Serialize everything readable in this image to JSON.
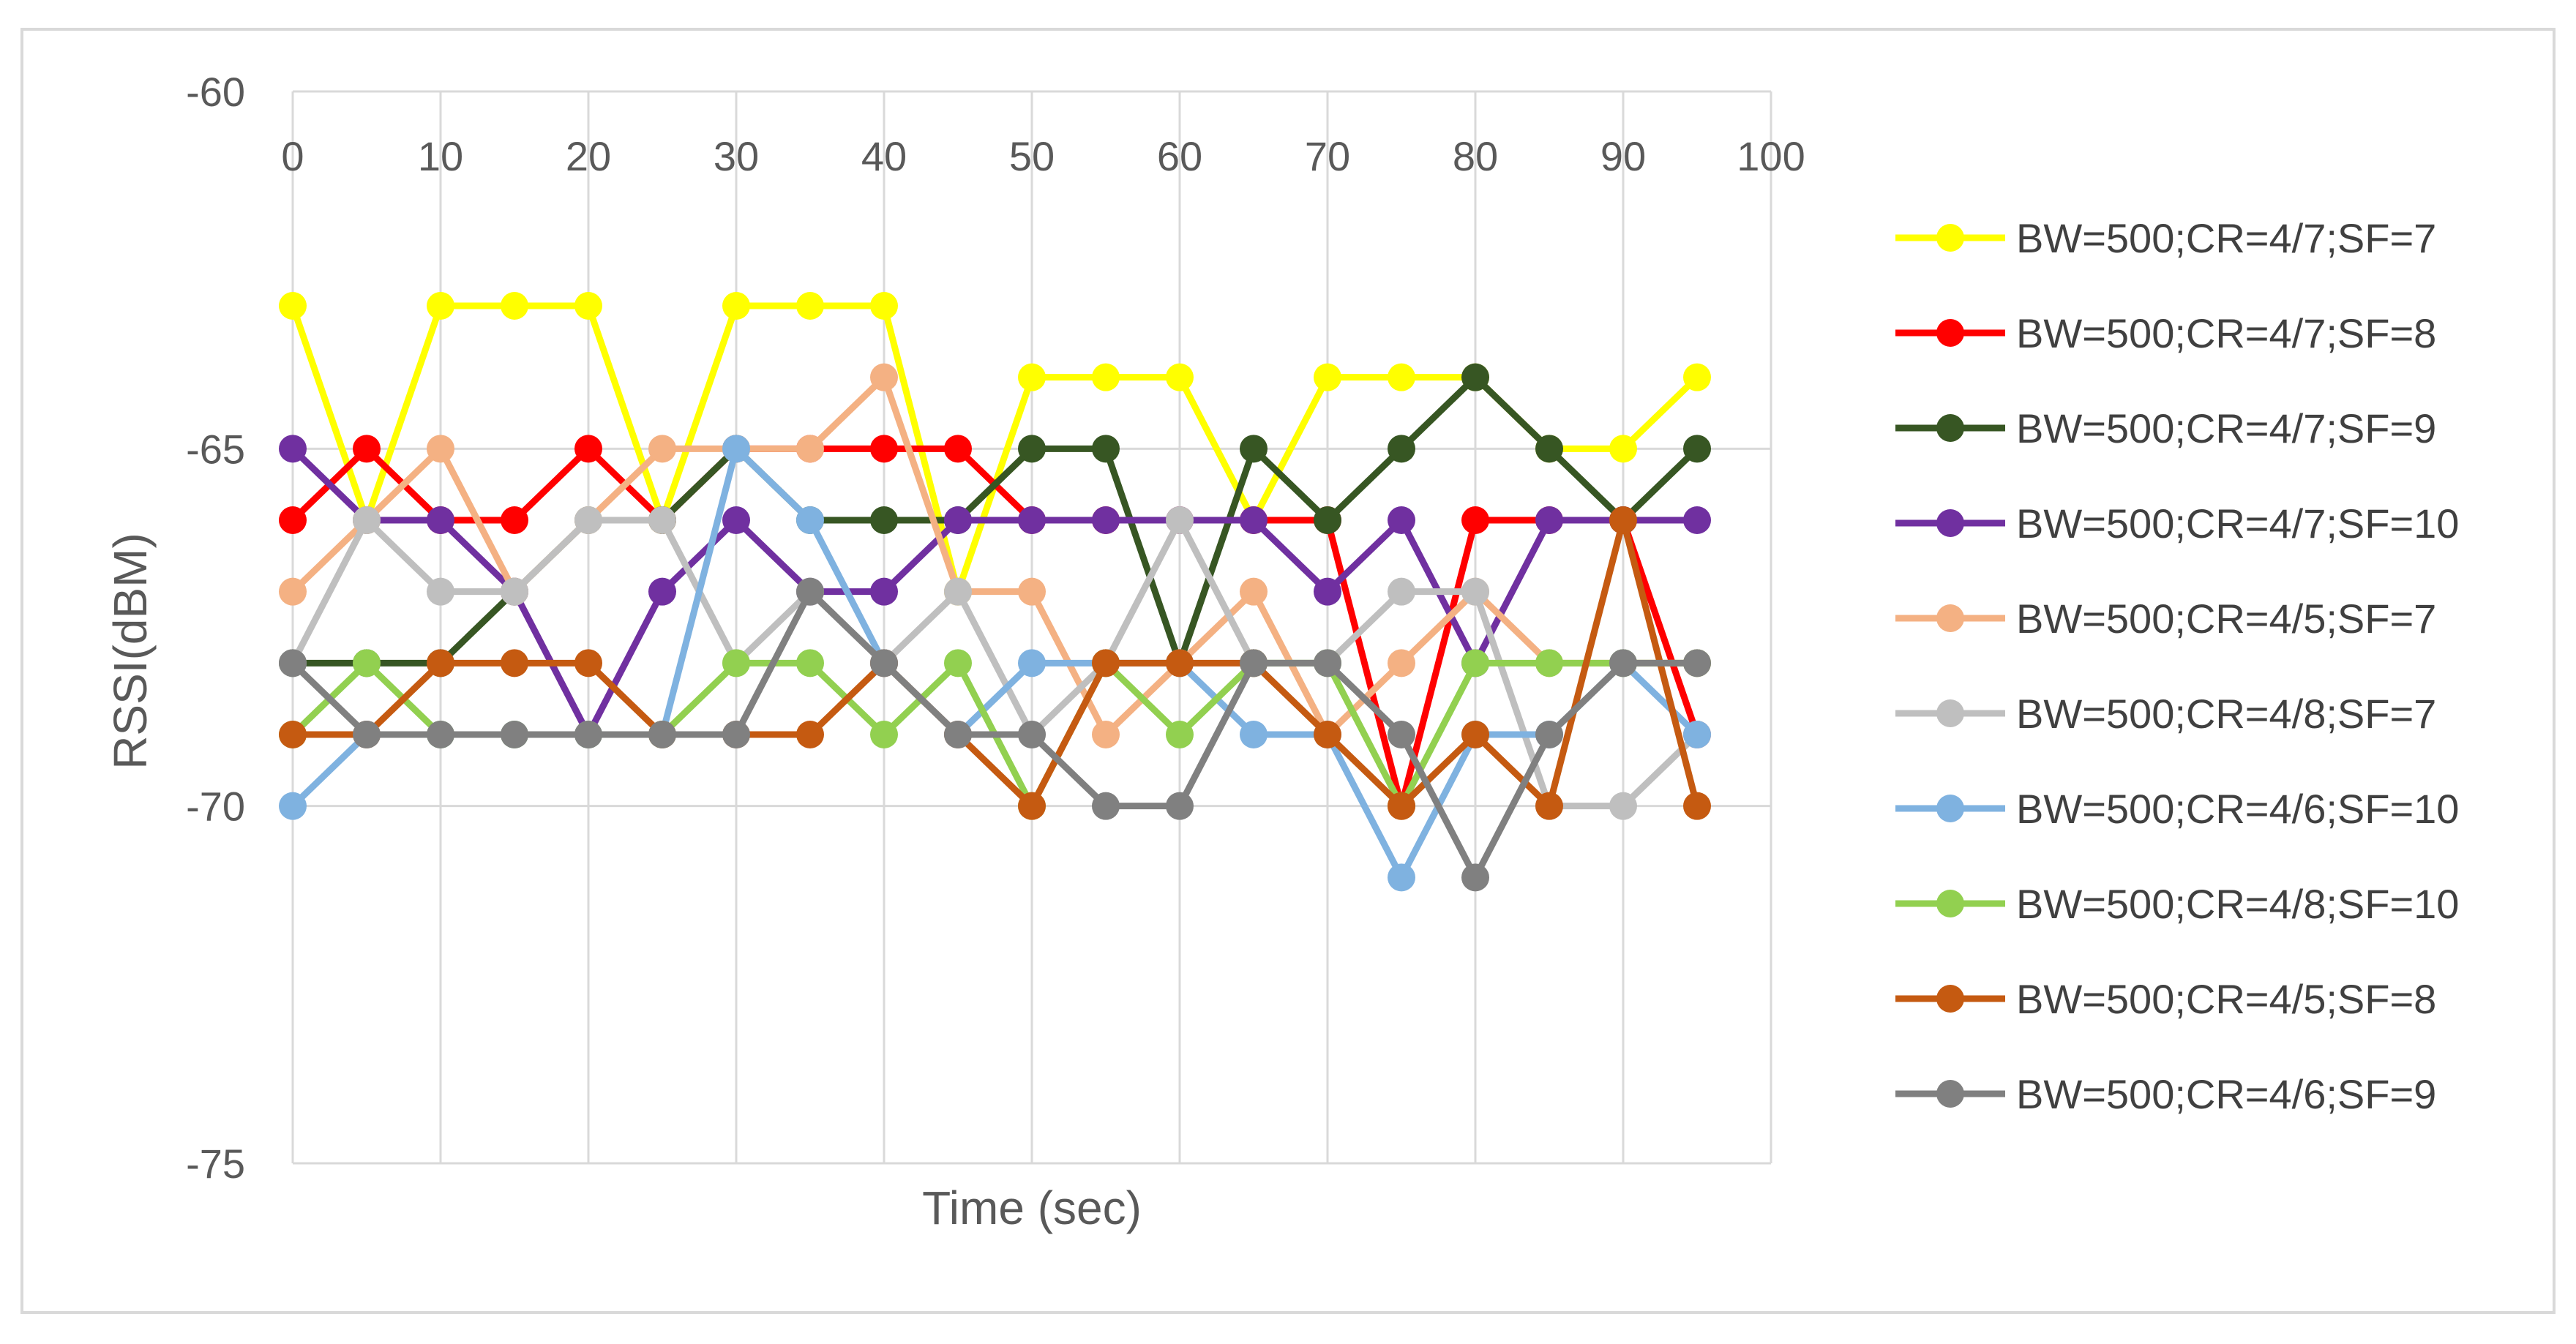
{
  "chart_data": {
    "type": "line",
    "title": "",
    "xlabel": "Time (sec)",
    "ylabel": "RSSI(dBM)",
    "xlim": [
      0,
      100
    ],
    "ylim": [
      -75,
      -60
    ],
    "x_ticks": [
      "0",
      "10",
      "20",
      "30",
      "40",
      "50",
      "60",
      "70",
      "80",
      "90",
      "100"
    ],
    "y_ticks": [
      "-60",
      "-65",
      "-70",
      "-75"
    ],
    "x": [
      0,
      5,
      10,
      15,
      20,
      25,
      30,
      35,
      40,
      45,
      50,
      55,
      60,
      65,
      70,
      75,
      80,
      85,
      90,
      95
    ],
    "grid": true,
    "legend_position": "right",
    "series": [
      {
        "name": "BW=500;CR=4/7;SF=7",
        "color": "#ffff00",
        "values": [
          -63,
          -66,
          -63,
          -63,
          -63,
          -66,
          -63,
          -63,
          -63,
          -67,
          -64,
          -64,
          -64,
          -66,
          -64,
          -64,
          -64,
          -65,
          -65,
          -64
        ]
      },
      {
        "name": "BW=500;CR=4/7;SF=8",
        "color": "#ff0000",
        "values": [
          -66,
          -65,
          -66,
          -66,
          -65,
          -66,
          -65,
          -65,
          -65,
          -65,
          -66,
          -66,
          -66,
          -66,
          -66,
          -70,
          -66,
          -66,
          -66,
          -69
        ]
      },
      {
        "name": "BW=500;CR=4/7;SF=9",
        "color": "#375623",
        "values": [
          -68,
          -68,
          -68,
          -67,
          -66,
          -66,
          -65,
          -66,
          -66,
          -66,
          -65,
          -65,
          -68,
          -65,
          -66,
          -65,
          -64,
          -65,
          -66,
          -65
        ]
      },
      {
        "name": "BW=500;CR=4/7;SF=10",
        "color": "#7030a0",
        "values": [
          -65,
          -66,
          -66,
          -67,
          -69,
          -67,
          -66,
          -67,
          -67,
          -66,
          -66,
          -66,
          -66,
          -66,
          -67,
          -66,
          -68,
          -66,
          -66,
          -66
        ]
      },
      {
        "name": "BW=500;CR=4/5;SF=7",
        "color": "#f4b183",
        "values": [
          -67,
          -66,
          -65,
          -67,
          -66,
          -65,
          -65,
          -65,
          -64,
          -67,
          -67,
          -69,
          -68,
          -67,
          -69,
          -68,
          -67,
          -68,
          -68,
          -68
        ]
      },
      {
        "name": "BW=500;CR=4/8;SF=7",
        "color": "#bfbfbf",
        "values": [
          -68,
          -66,
          -67,
          -67,
          -66,
          -66,
          -68,
          -67,
          -68,
          -67,
          -69,
          -68,
          -66,
          -68,
          -68,
          -67,
          -67,
          -70,
          -70,
          -69
        ]
      },
      {
        "name": "BW=500;CR=4/6;SF=10",
        "color": "#7fb2e0",
        "values": [
          -70,
          -69,
          -69,
          -69,
          -69,
          -69,
          -65,
          -66,
          -68,
          -69,
          -68,
          -68,
          -68,
          -69,
          -69,
          -71,
          -69,
          -69,
          -68,
          -69
        ]
      },
      {
        "name": "BW=500;CR=4/8;SF=10",
        "color": "#92d050",
        "values": [
          -69,
          -68,
          -69,
          -69,
          -69,
          -69,
          -68,
          -68,
          -69,
          -68,
          -70,
          -68,
          -69,
          -68,
          -68,
          -70,
          -68,
          -68,
          -68,
          -68
        ]
      },
      {
        "name": "BW=500;CR=4/5;SF=8",
        "color": "#c55a11",
        "values": [
          -69,
          -69,
          -68,
          -68,
          -68,
          -69,
          -69,
          -69,
          -68,
          -69,
          -70,
          -68,
          -68,
          -68,
          -69,
          -70,
          -69,
          -70,
          -66,
          -70
        ]
      },
      {
        "name": "BW=500;CR=4/6;SF=9",
        "color": "#808080",
        "values": [
          -68,
          -69,
          -69,
          -69,
          -69,
          -69,
          -69,
          -67,
          -68,
          -69,
          -69,
          -70,
          -70,
          -68,
          -68,
          -69,
          -71,
          -69,
          -68,
          -68
        ]
      }
    ]
  }
}
